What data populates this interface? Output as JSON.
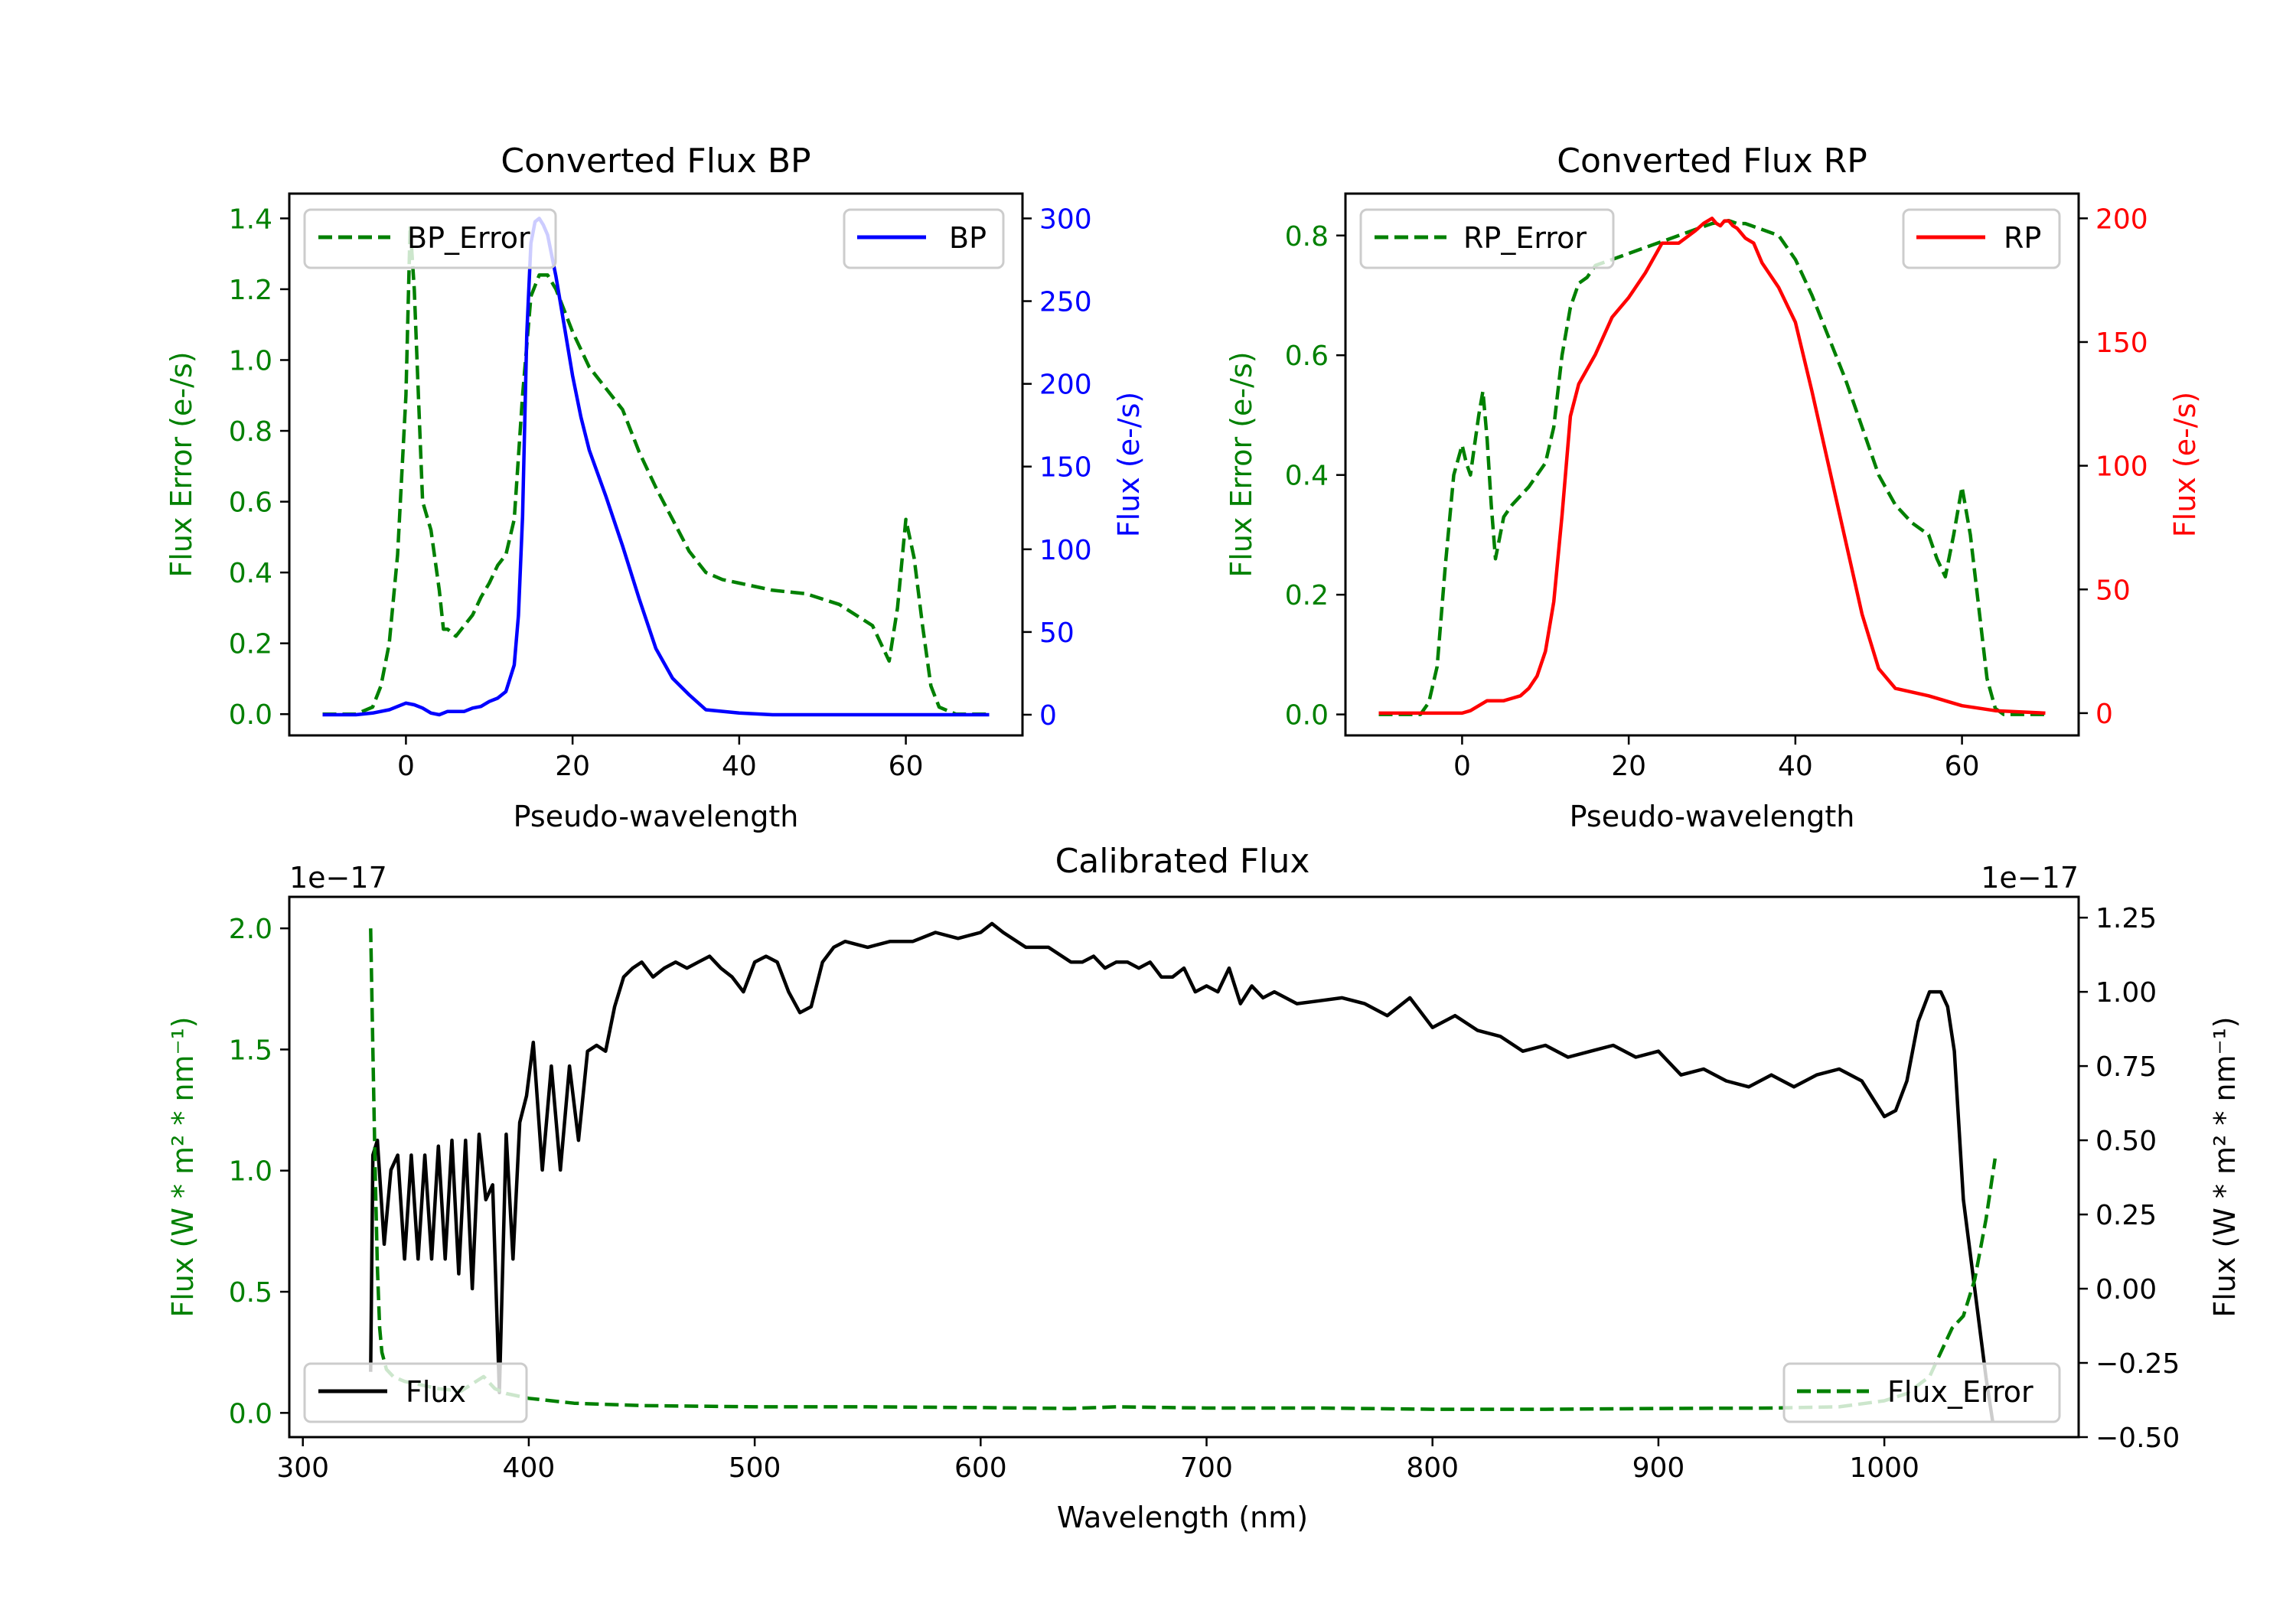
{
  "colors": {
    "green": "#008000",
    "blue": "#0000ff",
    "red": "#ff0000",
    "black": "#000000"
  },
  "chart_data": [
    {
      "type": "line",
      "title": "Converted Flux BP",
      "xlabel": "Pseudo-wavelength",
      "ylabel_left": "Flux Error (e-/s)",
      "ylabel_right": "Flux (e-/s)",
      "xlim": [
        -14,
        74
      ],
      "ylim_left": [
        -0.06,
        1.47
      ],
      "ylim_right": [
        -12.5,
        315
      ],
      "x_ticks": [
        0,
        20,
        40,
        60
      ],
      "y_ticks_left": [
        "0.0",
        "0.2",
        "0.4",
        "0.6",
        "0.8",
        "1.0",
        "1.2",
        "1.4"
      ],
      "y_ticks_right": [
        "0",
        "50",
        "100",
        "150",
        "200",
        "250",
        "300"
      ],
      "legend_left": {
        "placement": "upper-left",
        "label": "BP_Error"
      },
      "legend_right": {
        "placement": "upper-right",
        "label": "BP"
      },
      "series": [
        {
          "name": "BP_Error",
          "axis": "left",
          "style": "dashed",
          "color": "#008000",
          "x": [
            -10,
            -6,
            -4,
            -3,
            -2,
            -1,
            0,
            0.5,
            1,
            1.5,
            2,
            3,
            4,
            4.5,
            5,
            6,
            7,
            8,
            9,
            10,
            11,
            12,
            13,
            14,
            15,
            16,
            17,
            18,
            19,
            20,
            22,
            24,
            26,
            28,
            30,
            32,
            34,
            36,
            38,
            40,
            44,
            48,
            52,
            56,
            57,
            58,
            59,
            60,
            61,
            62,
            63,
            64,
            66,
            70
          ],
          "y": [
            0,
            0,
            0.02,
            0.08,
            0.2,
            0.45,
            0.9,
            1.38,
            1.2,
            0.9,
            0.6,
            0.52,
            0.35,
            0.24,
            0.24,
            0.22,
            0.25,
            0.28,
            0.33,
            0.37,
            0.42,
            0.45,
            0.55,
            0.9,
            1.18,
            1.24,
            1.24,
            1.2,
            1.14,
            1.08,
            0.98,
            0.92,
            0.86,
            0.74,
            0.64,
            0.55,
            0.46,
            0.4,
            0.38,
            0.37,
            0.35,
            0.34,
            0.31,
            0.25,
            0.2,
            0.15,
            0.3,
            0.55,
            0.44,
            0.25,
            0.08,
            0.02,
            0,
            0
          ]
        },
        {
          "name": "BP",
          "axis": "right",
          "style": "solid",
          "color": "#0000ff",
          "x": [
            -10,
            -6,
            -4,
            -2,
            0,
            1,
            2,
            3,
            4,
            5,
            6,
            7,
            8,
            9,
            10,
            11,
            12,
            13,
            13.5,
            14,
            14.5,
            15,
            15.5,
            16,
            16.5,
            17,
            18,
            19,
            20,
            21,
            22,
            24,
            26,
            28,
            30,
            32,
            34,
            36,
            40,
            44,
            48,
            52,
            56,
            60,
            70
          ],
          "y": [
            0,
            0,
            1,
            3,
            7,
            6,
            4,
            1,
            0,
            2,
            2,
            2,
            4,
            5,
            8,
            10,
            14,
            30,
            60,
            120,
            230,
            285,
            298,
            300,
            296,
            290,
            265,
            235,
            205,
            180,
            160,
            132,
            102,
            70,
            40,
            22,
            12,
            3,
            1,
            0,
            0,
            0,
            0,
            0,
            0
          ]
        }
      ]
    },
    {
      "type": "line",
      "title": "Converted Flux RP",
      "xlabel": "Pseudo-wavelength",
      "ylabel_left": "Flux Error (e-/s)",
      "ylabel_right": "Flux (e-/s)",
      "xlim": [
        -14,
        74
      ],
      "ylim_left": [
        -0.035,
        0.87
      ],
      "ylim_right": [
        -9,
        210
      ],
      "x_ticks": [
        0,
        20,
        40,
        60
      ],
      "y_ticks_left": [
        "0.0",
        "0.2",
        "0.4",
        "0.6",
        "0.8"
      ],
      "y_ticks_right": [
        "0",
        "50",
        "100",
        "150",
        "200"
      ],
      "legend_left": {
        "placement": "upper-left",
        "label": "RP_Error"
      },
      "legend_right": {
        "placement": "upper-right",
        "label": "RP"
      },
      "series": [
        {
          "name": "RP_Error",
          "axis": "left",
          "style": "dashed",
          "color": "#008000",
          "x": [
            -10,
            -5,
            -4,
            -3,
            -2,
            -1,
            0,
            0.5,
            1,
            1.5,
            2,
            2.5,
            3,
            3.5,
            4,
            5,
            6,
            8,
            10,
            11,
            12,
            13,
            14,
            15,
            16,
            18,
            20,
            22,
            24,
            26,
            28,
            30,
            32,
            33,
            34,
            36,
            38,
            40,
            42,
            46,
            48,
            50,
            52,
            54,
            56,
            57,
            58,
            59,
            60,
            61,
            62,
            63,
            64,
            65,
            70
          ],
          "y": [
            0,
            0,
            0.02,
            0.08,
            0.25,
            0.4,
            0.45,
            0.42,
            0.4,
            0.45,
            0.5,
            0.54,
            0.46,
            0.35,
            0.26,
            0.33,
            0.35,
            0.38,
            0.42,
            0.48,
            0.6,
            0.68,
            0.72,
            0.73,
            0.75,
            0.76,
            0.77,
            0.78,
            0.79,
            0.8,
            0.81,
            0.82,
            0.825,
            0.82,
            0.82,
            0.81,
            0.8,
            0.76,
            0.7,
            0.56,
            0.48,
            0.4,
            0.35,
            0.32,
            0.3,
            0.26,
            0.23,
            0.3,
            0.38,
            0.3,
            0.18,
            0.06,
            0.01,
            0,
            0
          ]
        },
        {
          "name": "RP",
          "axis": "right",
          "style": "solid",
          "color": "#ff0000",
          "x": [
            -10,
            -2,
            0,
            1,
            2,
            3,
            4,
            5,
            6,
            7,
            8,
            9,
            10,
            11,
            12,
            13,
            14,
            16,
            18,
            20,
            22,
            24,
            26,
            28,
            29,
            30,
            30.5,
            31,
            31.5,
            32,
            32.5,
            33,
            34,
            35,
            36,
            38,
            40,
            42,
            44,
            46,
            48,
            50,
            52,
            56,
            60,
            64,
            70
          ],
          "y": [
            0,
            0,
            0,
            1,
            3,
            5,
            5,
            5,
            6,
            7,
            10,
            15,
            25,
            45,
            80,
            120,
            133,
            145,
            160,
            168,
            178,
            190,
            190,
            195,
            198,
            200,
            198,
            197,
            199,
            199,
            197,
            196,
            192,
            190,
            182,
            172,
            158,
            130,
            100,
            70,
            40,
            18,
            10,
            7,
            3,
            1,
            0
          ]
        }
      ]
    },
    {
      "type": "line",
      "title": "Calibrated Flux",
      "xlabel": "Wavelength (nm)",
      "ylabel_left": "Flux (W * m² * nm⁻¹)",
      "ylabel_right": "Flux (W * m² * nm⁻¹)",
      "offset_left": "1e−17",
      "offset_right": "1e−17",
      "xlim": [
        294,
        1086
      ],
      "ylim_left": [
        -0.1,
        2.13
      ],
      "ylim_right": [
        -0.5,
        1.32
      ],
      "x_ticks": [
        300,
        400,
        500,
        600,
        700,
        800,
        900,
        1000
      ],
      "y_ticks_left": [
        "0.0",
        "0.5",
        "1.0",
        "1.5",
        "2.0"
      ],
      "y_ticks_right": [
        "−0.50",
        "−0.25",
        "0.00",
        "0.25",
        "0.50",
        "0.75",
        "1.00",
        "1.25"
      ],
      "legend_left": {
        "placement": "lower-left",
        "label": "Flux"
      },
      "legend_right": {
        "placement": "lower-right",
        "label": "Flux_Error"
      },
      "series": [
        {
          "name": "Flux",
          "axis": "right",
          "style": "solid",
          "color": "#000000",
          "x": [
            330,
            331,
            333,
            336,
            339,
            342,
            345,
            348,
            351,
            354,
            357,
            360,
            363,
            366,
            369,
            372,
            375,
            378,
            381,
            384,
            387,
            390,
            393,
            396,
            399,
            402,
            406,
            410,
            414,
            418,
            422,
            426,
            430,
            434,
            438,
            442,
            446,
            450,
            455,
            460,
            465,
            470,
            475,
            480,
            485,
            490,
            495,
            500,
            505,
            510,
            515,
            520,
            525,
            530,
            535,
            540,
            550,
            560,
            570,
            580,
            590,
            600,
            605,
            610,
            620,
            630,
            640,
            645,
            650,
            655,
            660,
            665,
            670,
            675,
            680,
            685,
            690,
            695,
            700,
            705,
            710,
            715,
            720,
            725,
            730,
            740,
            750,
            760,
            770,
            780,
            790,
            800,
            810,
            820,
            830,
            840,
            850,
            860,
            870,
            880,
            890,
            900,
            910,
            920,
            930,
            940,
            950,
            960,
            970,
            980,
            990,
            1000,
            1005,
            1010,
            1015,
            1020,
            1025,
            1028,
            1031,
            1035,
            1040,
            1045,
            1048
          ],
          "y": [
            -0.28,
            0.45,
            0.5,
            0.15,
            0.4,
            0.45,
            0.1,
            0.45,
            0.1,
            0.45,
            0.1,
            0.48,
            0.1,
            0.5,
            0.05,
            0.5,
            0.0,
            0.52,
            0.3,
            0.35,
            -0.35,
            0.52,
            0.1,
            0.56,
            0.65,
            0.83,
            0.4,
            0.75,
            0.4,
            0.75,
            0.5,
            0.8,
            0.82,
            0.8,
            0.95,
            1.05,
            1.08,
            1.1,
            1.05,
            1.08,
            1.1,
            1.08,
            1.1,
            1.12,
            1.08,
            1.05,
            1.0,
            1.1,
            1.12,
            1.1,
            1.0,
            0.93,
            0.95,
            1.1,
            1.15,
            1.17,
            1.15,
            1.17,
            1.17,
            1.2,
            1.18,
            1.2,
            1.23,
            1.2,
            1.15,
            1.15,
            1.1,
            1.1,
            1.12,
            1.08,
            1.1,
            1.1,
            1.08,
            1.1,
            1.05,
            1.05,
            1.08,
            1.0,
            1.02,
            1.0,
            1.08,
            0.96,
            1.02,
            0.98,
            1.0,
            0.96,
            0.97,
            0.98,
            0.96,
            0.92,
            0.98,
            0.88,
            0.92,
            0.87,
            0.85,
            0.8,
            0.82,
            0.78,
            0.8,
            0.82,
            0.78,
            0.8,
            0.72,
            0.74,
            0.7,
            0.68,
            0.72,
            0.68,
            0.72,
            0.74,
            0.7,
            0.58,
            0.6,
            0.7,
            0.9,
            1.0,
            1.0,
            0.95,
            0.8,
            0.3,
            0.0,
            -0.3,
            -0.45
          ]
        },
        {
          "name": "Flux_Error",
          "axis": "left",
          "style": "dashed",
          "color": "#008000",
          "x": [
            330,
            331,
            332,
            333,
            334,
            335,
            337,
            340,
            345,
            350,
            360,
            370,
            380,
            385,
            390,
            400,
            420,
            450,
            500,
            550,
            600,
            620,
            640,
            660,
            700,
            750,
            800,
            850,
            900,
            950,
            980,
            1000,
            1010,
            1020,
            1025,
            1030,
            1035,
            1040,
            1045,
            1049
          ],
          "y": [
            2.0,
            1.5,
            1.0,
            0.6,
            0.35,
            0.25,
            0.18,
            0.15,
            0.13,
            0.12,
            0.1,
            0.09,
            0.15,
            0.1,
            0.08,
            0.06,
            0.04,
            0.03,
            0.025,
            0.025,
            0.022,
            0.02,
            0.018,
            0.025,
            0.02,
            0.02,
            0.015,
            0.015,
            0.018,
            0.02,
            0.025,
            0.05,
            0.08,
            0.15,
            0.25,
            0.35,
            0.4,
            0.55,
            0.8,
            1.05
          ]
        }
      ]
    }
  ]
}
